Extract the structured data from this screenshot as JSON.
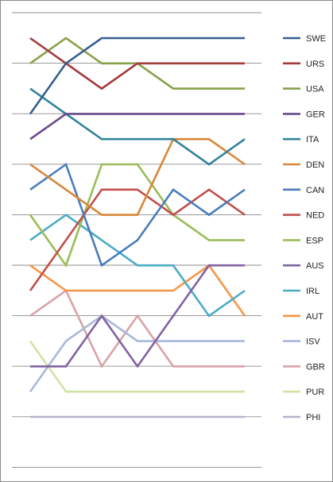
{
  "chart_data": {
    "type": "line",
    "x": [
      1,
      2,
      3,
      4,
      5,
      6,
      7
    ],
    "ylim": [
      1,
      17
    ],
    "y_inverted": true,
    "grid": true,
    "legend_position": "right",
    "series": [
      {
        "name": "SWE",
        "color": "#365F91",
        "values": [
          4,
          2,
          1,
          1,
          1,
          1,
          1
        ]
      },
      {
        "name": "URS",
        "color": "#A33B3B",
        "values": [
          1,
          2,
          3,
          2,
          2,
          2,
          2
        ]
      },
      {
        "name": "USA",
        "color": "#88A14A",
        "values": [
          2,
          1,
          2,
          2,
          3,
          3,
          3
        ]
      },
      {
        "name": "GER",
        "color": "#6A4A8A",
        "values": [
          5,
          4,
          4,
          4,
          4,
          4,
          4
        ]
      },
      {
        "name": "ITA",
        "color": "#31849B",
        "values": [
          3,
          4,
          5,
          5,
          5,
          6,
          5
        ]
      },
      {
        "name": "DEN",
        "color": "#D7863A",
        "values": [
          6,
          7,
          8,
          8,
          5,
          5,
          6
        ]
      },
      {
        "name": "CAN",
        "color": "#4A7EBB",
        "values": [
          7,
          6,
          10,
          9,
          7,
          8,
          7
        ]
      },
      {
        "name": "NED",
        "color": "#C0504D",
        "values": [
          11,
          9,
          7,
          7,
          8,
          7,
          8
        ]
      },
      {
        "name": "ESP",
        "color": "#9BBB59",
        "values": [
          8,
          10,
          6,
          6,
          8,
          9,
          9
        ]
      },
      {
        "name": "AUS",
        "color": "#8064A2",
        "values": [
          14,
          14,
          12,
          14,
          12,
          10,
          10
        ]
      },
      {
        "name": "IRL",
        "color": "#4BACC6",
        "values": [
          9,
          8,
          9,
          10,
          10,
          12,
          11
        ]
      },
      {
        "name": "AUT",
        "color": "#F79646",
        "values": [
          10,
          11,
          11,
          11,
          11,
          10,
          12
        ]
      },
      {
        "name": "ISV",
        "color": "#A9B8DA",
        "values": [
          15,
          13,
          12,
          13,
          13,
          13,
          13
        ]
      },
      {
        "name": "GBR",
        "color": "#D9A3A8",
        "values": [
          12,
          11,
          14,
          12,
          14,
          14,
          14
        ]
      },
      {
        "name": "PUR",
        "color": "#D1E3A6",
        "values": [
          13,
          15,
          15,
          15,
          15,
          15,
          15
        ]
      },
      {
        "name": "PHI",
        "color": "#B3B3C9",
        "values": [
          16,
          16,
          16,
          16,
          16,
          16,
          16
        ]
      }
    ]
  }
}
